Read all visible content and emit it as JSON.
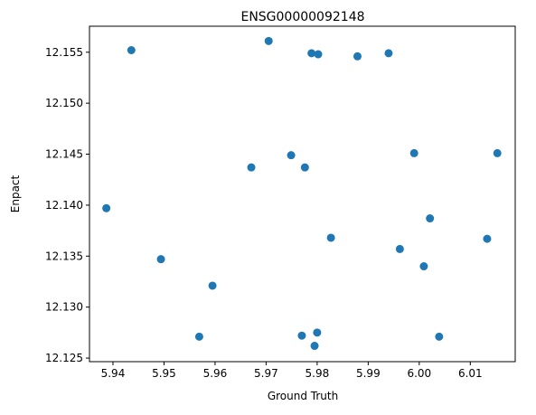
{
  "chart_data": {
    "type": "scatter",
    "title": "ENSG00000092148",
    "xlabel": "Ground Truth",
    "ylabel": "Enpact",
    "xlim": [
      5.9354,
      6.0188
    ],
    "ylim": [
      12.12465,
      12.15755
    ],
    "xticks": [
      5.94,
      5.95,
      5.96,
      5.97,
      5.98,
      5.99,
      6.0,
      6.01
    ],
    "xtick_labels": [
      "5.94",
      "5.95",
      "5.96",
      "5.97",
      "5.98",
      "5.99",
      "6.00",
      "6.01"
    ],
    "yticks": [
      12.125,
      12.13,
      12.135,
      12.14,
      12.145,
      12.15,
      12.155
    ],
    "ytick_labels": [
      "12.125",
      "12.130",
      "12.135",
      "12.140",
      "12.145",
      "12.150",
      "12.155"
    ],
    "grid": false,
    "marker_color": "#1f77b4",
    "points": [
      {
        "x": 5.9387,
        "y": 12.1397
      },
      {
        "x": 5.9436,
        "y": 12.1552
      },
      {
        "x": 5.9494,
        "y": 12.1347
      },
      {
        "x": 5.9569,
        "y": 12.1271
      },
      {
        "x": 5.9595,
        "y": 12.1321
      },
      {
        "x": 5.9671,
        "y": 12.1437
      },
      {
        "x": 5.9705,
        "y": 12.1561
      },
      {
        "x": 5.9749,
        "y": 12.1449
      },
      {
        "x": 5.977,
        "y": 12.1272
      },
      {
        "x": 5.9776,
        "y": 12.1437
      },
      {
        "x": 5.9789,
        "y": 12.1549
      },
      {
        "x": 5.9795,
        "y": 12.1262
      },
      {
        "x": 5.98,
        "y": 12.1275
      },
      {
        "x": 5.9802,
        "y": 12.1548
      },
      {
        "x": 5.9827,
        "y": 12.1368
      },
      {
        "x": 5.9879,
        "y": 12.1546
      },
      {
        "x": 5.994,
        "y": 12.1549
      },
      {
        "x": 5.9962,
        "y": 12.1357
      },
      {
        "x": 5.999,
        "y": 12.1451
      },
      {
        "x": 6.0009,
        "y": 12.134
      },
      {
        "x": 6.0021,
        "y": 12.1387
      },
      {
        "x": 6.0039,
        "y": 12.1271
      },
      {
        "x": 6.0133,
        "y": 12.1367
      },
      {
        "x": 6.0153,
        "y": 12.1451
      }
    ]
  }
}
